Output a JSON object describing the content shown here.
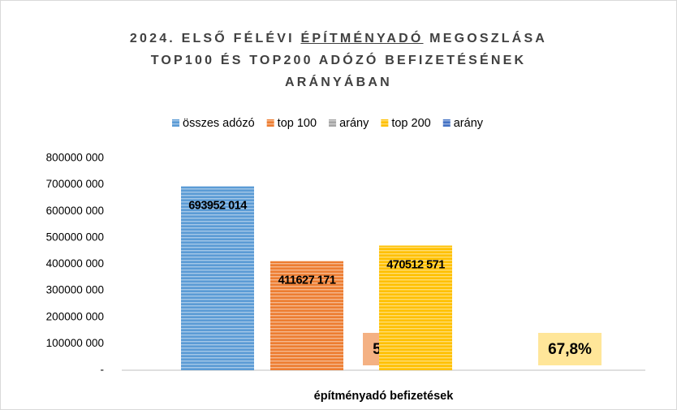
{
  "chart_data": {
    "type": "bar",
    "title": [
      "2024. ELSŐ FÉLÉVI ",
      "ÉPÍTMÉNYADÓ",
      " MEGOSZLÁSA",
      "TOP100 ÉS TOP200 ADÓZÓ BEFIZETÉSÉNEK",
      "ARÁNYÁBAN"
    ],
    "categories": [
      "építményadó befizetések"
    ],
    "series": [
      {
        "name": "összes adózó",
        "color": "#5b9bd5",
        "values": [
          693952014
        ],
        "value_labels": [
          "693952 014"
        ]
      },
      {
        "name": "top 100",
        "color": "#ed7d31",
        "values": [
          411627171
        ],
        "value_labels": [
          "411627 171"
        ]
      },
      {
        "name": "arány",
        "color": "#a5a5a5",
        "values": [
          59.3
        ],
        "value_labels": [
          "59,3%"
        ],
        "label_color": "#f4b183"
      },
      {
        "name": "top 200",
        "color": "#ffc000",
        "values": [
          470512571
        ],
        "value_labels": [
          "470512 571"
        ]
      },
      {
        "name": "arány",
        "color": "#4472c4",
        "values": [
          67.8
        ],
        "value_labels": [
          "67,8%"
        ],
        "label_color": "#ffe699"
      }
    ],
    "ylim": [
      0,
      800000000
    ],
    "yticks": [
      {
        "value": 0,
        "label": "-"
      },
      {
        "value": 100000000,
        "label": "100000 000"
      },
      {
        "value": 200000000,
        "label": "200000 000"
      },
      {
        "value": 300000000,
        "label": "300000 000"
      },
      {
        "value": 400000000,
        "label": "400000 000"
      },
      {
        "value": 500000000,
        "label": "500000 000"
      },
      {
        "value": 600000000,
        "label": "600000 000"
      },
      {
        "value": 700000000,
        "label": "700000 000"
      },
      {
        "value": 800000000,
        "label": "800000 000"
      }
    ],
    "legend": "top"
  }
}
